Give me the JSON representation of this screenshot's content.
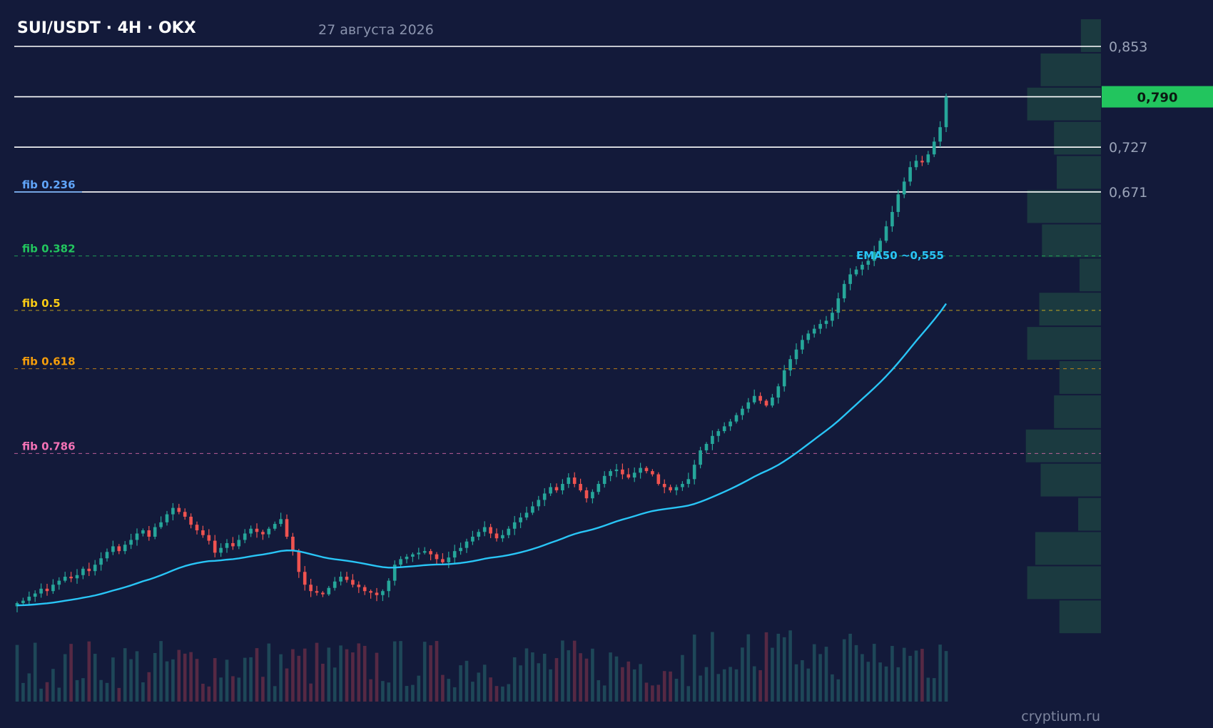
{
  "header": {
    "title": "SUI/USDT · 4H · OKX",
    "date": "27 августа 2026",
    "watermark": "cryptium.ru"
  },
  "colors": {
    "background": "#131a3a",
    "up": "#26a69a",
    "down": "#ef5350",
    "ema": "#29c5f6",
    "current_price_tag": "#22c55e",
    "volume_profile": "#1b3a40"
  },
  "chart_data": {
    "type": "candlestick",
    "symbol": "SUI/USDT",
    "timeframe": "4H",
    "exchange": "OKX",
    "y_axis_ticks": [
      {
        "value": 0.853,
        "label": "0,853"
      },
      {
        "value": 0.727,
        "label": "0,727"
      },
      {
        "value": 0.671,
        "label": "0,671"
      }
    ],
    "current_price": {
      "value": 0.79,
      "label": "0,790"
    },
    "horizontal_levels": [
      0.853,
      0.79,
      0.727,
      0.671
    ],
    "fib_levels": [
      {
        "label": "fib 0.236",
        "price": 0.671,
        "color": "#60a5fa"
      },
      {
        "label": "fib 0.382",
        "price": 0.591,
        "color": "#22c55e"
      },
      {
        "label": "fib 0.5",
        "price": 0.523,
        "color": "#facc15"
      },
      {
        "label": "fib 0.618",
        "price": 0.45,
        "color": "#f59e0b"
      },
      {
        "label": "fib 0.786",
        "price": 0.344,
        "color": "#f472b6"
      }
    ],
    "ema": {
      "label": "EMA50 ~0,555",
      "period": 50
    },
    "closes": [
      0.157,
      0.16,
      0.165,
      0.169,
      0.175,
      0.172,
      0.18,
      0.185,
      0.19,
      0.188,
      0.192,
      0.2,
      0.197,
      0.205,
      0.213,
      0.221,
      0.228,
      0.222,
      0.23,
      0.236,
      0.244,
      0.248,
      0.24,
      0.252,
      0.258,
      0.268,
      0.276,
      0.271,
      0.265,
      0.255,
      0.248,
      0.242,
      0.235,
      0.22,
      0.226,
      0.232,
      0.228,
      0.236,
      0.244,
      0.25,
      0.246,
      0.243,
      0.25,
      0.256,
      0.262,
      0.24,
      0.222,
      0.196,
      0.18,
      0.172,
      0.17,
      0.168,
      0.176,
      0.184,
      0.19,
      0.186,
      0.18,
      0.177,
      0.172,
      0.17,
      0.167,
      0.172,
      0.185,
      0.205,
      0.212,
      0.215,
      0.218,
      0.22,
      0.222,
      0.218,
      0.212,
      0.208,
      0.214,
      0.222,
      0.226,
      0.234,
      0.24,
      0.246,
      0.252,
      0.244,
      0.238,
      0.242,
      0.25,
      0.258,
      0.264,
      0.27,
      0.278,
      0.286,
      0.294,
      0.302,
      0.298,
      0.306,
      0.314,
      0.306,
      0.298,
      0.288,
      0.296,
      0.306,
      0.316,
      0.322,
      0.324,
      0.318,
      0.314,
      0.32,
      0.326,
      0.322,
      0.318,
      0.306,
      0.302,
      0.298,
      0.302,
      0.306,
      0.312,
      0.33,
      0.348,
      0.356,
      0.366,
      0.372,
      0.378,
      0.384,
      0.392,
      0.4,
      0.408,
      0.416,
      0.41,
      0.404,
      0.414,
      0.428,
      0.448,
      0.462,
      0.474,
      0.486,
      0.494,
      0.5,
      0.506,
      0.51,
      0.52,
      0.538,
      0.556,
      0.568,
      0.574,
      0.58,
      0.585,
      0.596,
      0.61,
      0.628,
      0.646,
      0.668,
      0.684,
      0.702,
      0.71,
      0.708,
      0.718,
      0.734,
      0.752,
      0.79
    ],
    "xlabel": "",
    "ylabel": ""
  }
}
